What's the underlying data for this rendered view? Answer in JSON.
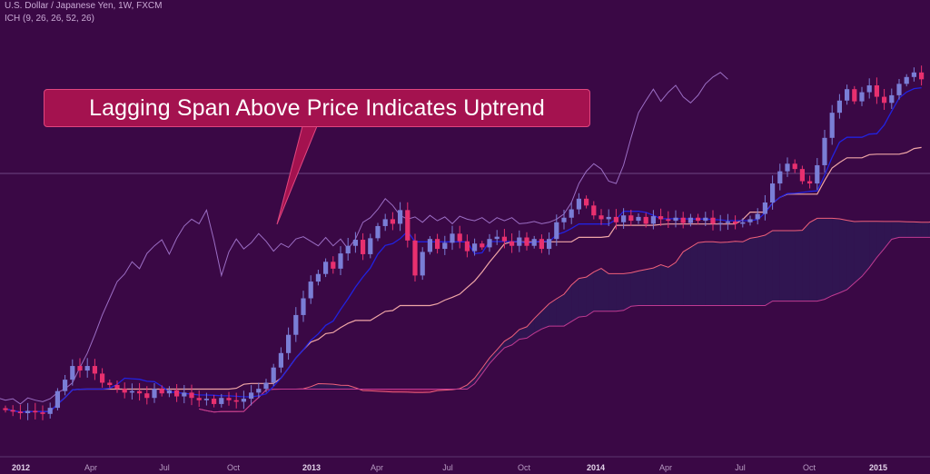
{
  "legend": {
    "title": "U.S. Dollar / Japanese Yen, 1W, FXCM",
    "indicator": "ICH (9, 26, 26, 52, 26)"
  },
  "annotation": {
    "text": "Lagging Span Above Price Indicates Uptrend"
  },
  "chart_data": {
    "type": "candlestick",
    "title": "U.S. Dollar / Japanese Yen, 1W, FXCM",
    "indicator": "ICH (9, 26, 26, 52, 26)",
    "xaxis": {
      "ticks": [
        "2012",
        "Apr",
        "Jul",
        "Oct",
        "2013",
        "Apr",
        "Jul",
        "Oct",
        "2014",
        "Apr",
        "Jul",
        "Oct",
        "2015"
      ],
      "major_ticks": [
        "2012",
        "2013",
        "2014",
        "2015"
      ]
    },
    "yaxis": {
      "range": [
        76,
        124
      ],
      "visible": false
    },
    "horizontal_line": 104,
    "grid": false,
    "series": [
      {
        "name": "price",
        "type": "candlestick",
        "up_color": "#7a7ed6",
        "down_color": "#e8306f",
        "closes": [
          77.0,
          76.8,
          76.6,
          76.9,
          76.7,
          76.5,
          77.3,
          79.5,
          81.0,
          82.8,
          82.2,
          82.8,
          81.8,
          80.6,
          80.3,
          79.8,
          79.3,
          79.5,
          79.2,
          78.6,
          79.8,
          79.2,
          79.6,
          78.8,
          79.3,
          78.6,
          78.3,
          78.5,
          77.8,
          78.6,
          78.3,
          78.1,
          78.5,
          79.3,
          79.8,
          80.6,
          82.6,
          84.5,
          86.9,
          89.5,
          91.7,
          93.9,
          94.9,
          96.5,
          95.6,
          97.6,
          98.6,
          99.4,
          97.5,
          99.6,
          101.2,
          102.1,
          101.5,
          103.3,
          99.3,
          94.7,
          97.8,
          99.5,
          98.2,
          99.0,
          100.2,
          99.2,
          97.9,
          98.9,
          98.4,
          99.5,
          99.8,
          99.2,
          98.6,
          99.7,
          98.6,
          99.5,
          98.2,
          99.5,
          101.7,
          102.3,
          103.4,
          104.8,
          103.9,
          102.6,
          102.1,
          102.4,
          101.7,
          102.6,
          101.9,
          102.4,
          101.5,
          102.5,
          102.1,
          101.9,
          102.3,
          101.6,
          102.3,
          101.9,
          102.3,
          101.5,
          101.6,
          101.8,
          101.5,
          101.7,
          102.1,
          102.8,
          104.3,
          106.8,
          108.4,
          109.4,
          108.7,
          107.1,
          106.8,
          109.2,
          112.8,
          116.1,
          117.7,
          119.2,
          117.6,
          118.8,
          119.7,
          118.2,
          117.4,
          118.4,
          119.9,
          120.8,
          121.4,
          120.5
        ]
      },
      {
        "name": "conversion line",
        "color": "#2222e0"
      },
      {
        "name": "base line",
        "color": "#f0a6a6"
      },
      {
        "name": "lagging span",
        "color": "#9b6ec4"
      },
      {
        "name": "leading span A",
        "color": "#f0607a"
      },
      {
        "name": "leading span B",
        "color": "#c03a92"
      },
      {
        "name": "cloud bearish",
        "color": "#8a1252"
      },
      {
        "name": "cloud bullish",
        "color": "#2e1a55"
      }
    ]
  }
}
